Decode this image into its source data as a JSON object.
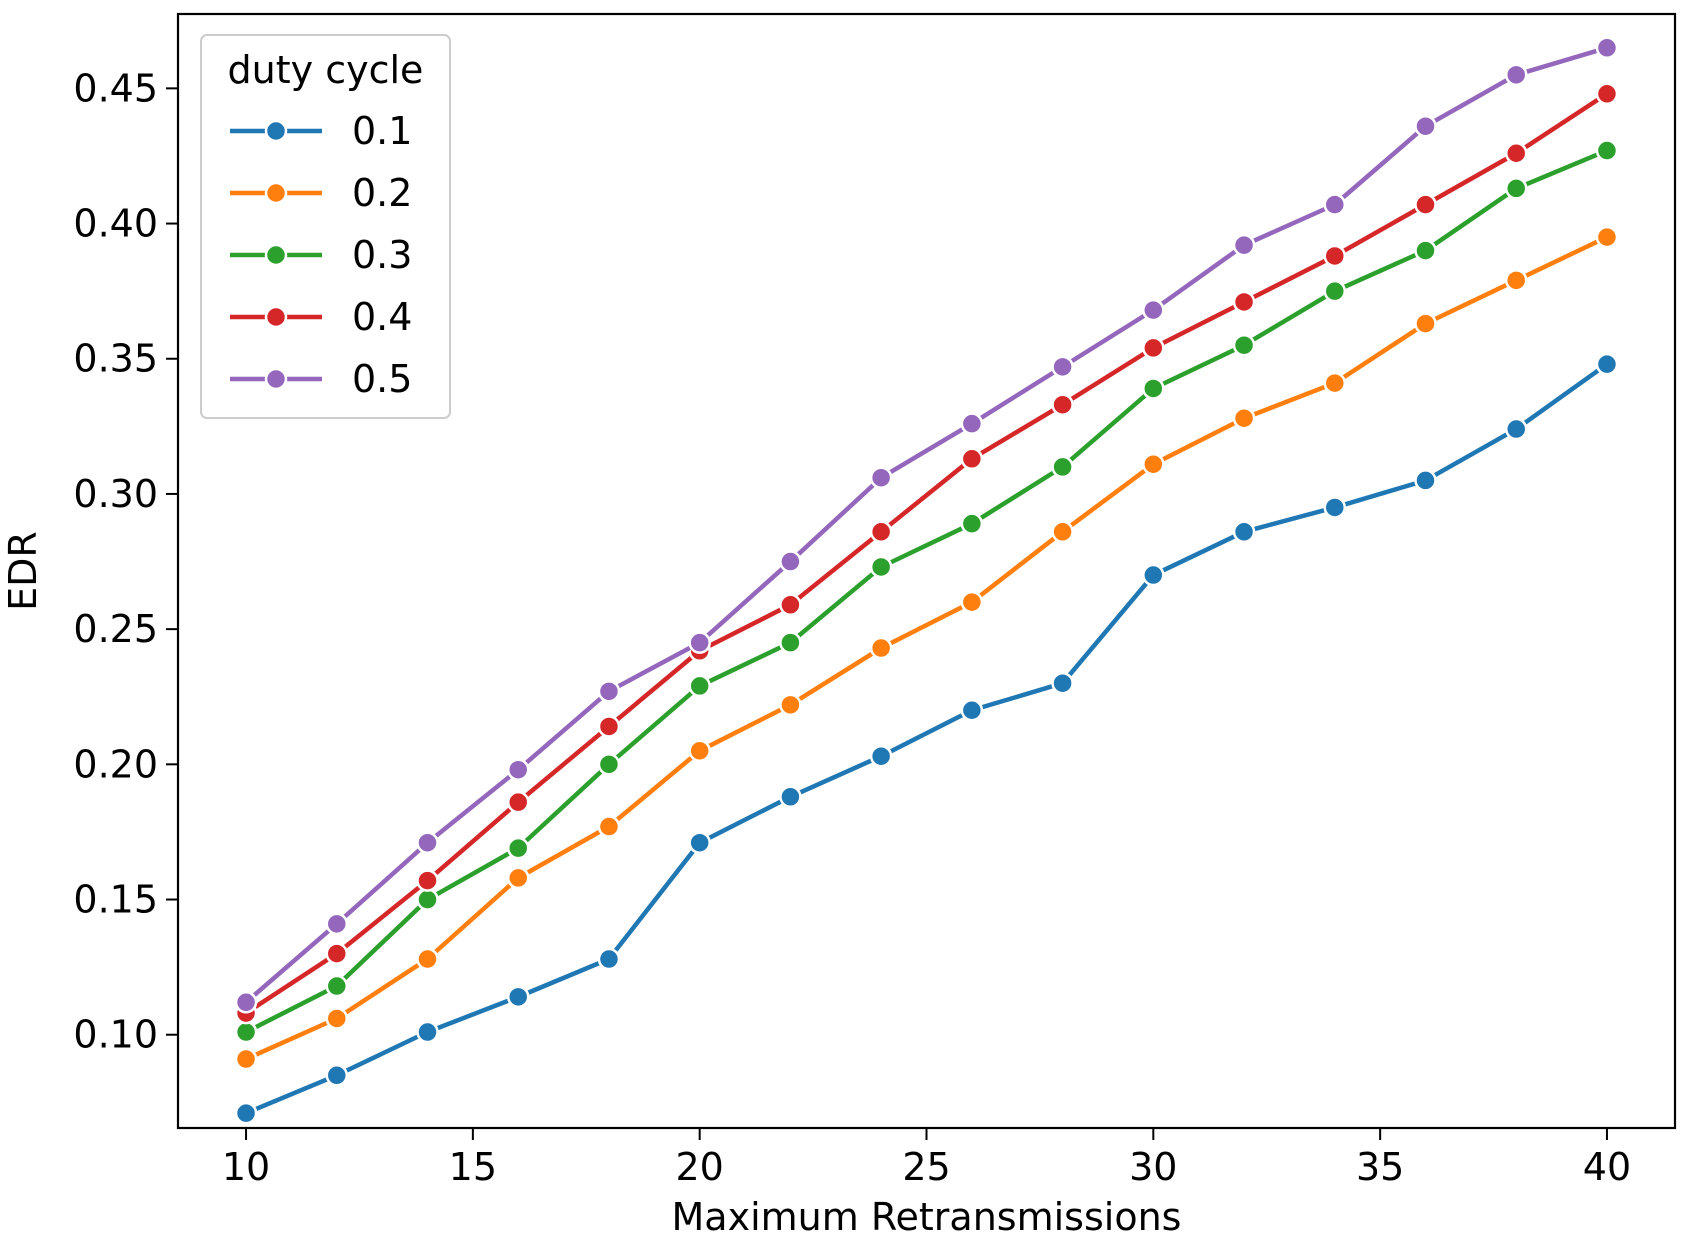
{
  "chart_data": {
    "type": "line",
    "title": "",
    "xlabel": "Maximum Retransmissions",
    "ylabel": "EDR",
    "xlim": [
      8.5,
      41.5
    ],
    "ylim": [
      0.0655,
      0.4775
    ],
    "xticks": [
      10,
      15,
      20,
      25,
      30,
      35,
      40
    ],
    "yticks": [
      0.1,
      0.15,
      0.2,
      0.25,
      0.3,
      0.35,
      0.4,
      0.45
    ],
    "xtick_labels": [
      "10",
      "15",
      "20",
      "25",
      "30",
      "35",
      "40"
    ],
    "ytick_labels": [
      "0.10",
      "0.15",
      "0.20",
      "0.25",
      "0.30",
      "0.35",
      "0.40",
      "0.45"
    ],
    "grid": false,
    "legend": {
      "title": "duty cycle",
      "placement": "top-left"
    },
    "x": [
      10,
      12,
      14,
      16,
      18,
      20,
      22,
      24,
      26,
      28,
      30,
      32,
      34,
      36,
      38,
      40
    ],
    "series": [
      {
        "name": "0.1",
        "color": "#1f77b4",
        "values": [
          0.071,
          0.085,
          0.101,
          0.114,
          0.128,
          0.171,
          0.188,
          0.203,
          0.22,
          0.23,
          0.27,
          0.286,
          0.295,
          0.305,
          0.324,
          0.348
        ]
      },
      {
        "name": "0.2",
        "color": "#ff7f0e",
        "values": [
          0.091,
          0.106,
          0.128,
          0.158,
          0.177,
          0.205,
          0.222,
          0.243,
          0.26,
          0.286,
          0.311,
          0.328,
          0.341,
          0.363,
          0.379,
          0.395
        ]
      },
      {
        "name": "0.3",
        "color": "#2ca02c",
        "values": [
          0.101,
          0.118,
          0.15,
          0.169,
          0.2,
          0.229,
          0.245,
          0.273,
          0.289,
          0.31,
          0.339,
          0.355,
          0.375,
          0.39,
          0.413,
          0.427
        ]
      },
      {
        "name": "0.4",
        "color": "#d62728",
        "values": [
          0.108,
          0.13,
          0.157,
          0.186,
          0.214,
          0.242,
          0.259,
          0.286,
          0.313,
          0.333,
          0.354,
          0.371,
          0.388,
          0.407,
          0.426,
          0.448
        ]
      },
      {
        "name": "0.5",
        "color": "#9467bd",
        "values": [
          0.112,
          0.141,
          0.171,
          0.198,
          0.227,
          0.245,
          0.275,
          0.306,
          0.326,
          0.347,
          0.368,
          0.392,
          0.407,
          0.436,
          0.455,
          0.465
        ]
      }
    ]
  }
}
